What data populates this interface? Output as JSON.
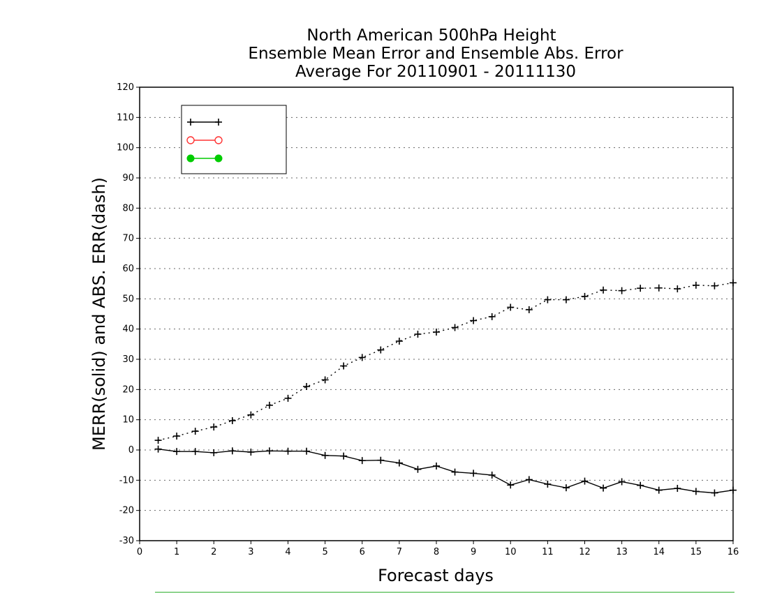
{
  "chart_data": {
    "type": "line",
    "title": [
      "North American 500hPa Height",
      "Ensemble Mean Error and Ensemble Abs. Error",
      "Average For 20110901 - 20111130"
    ],
    "xlabel": "Forecast days",
    "ylabel": "MERR(solid) and ABS. ERR(dash)",
    "xlim": [
      0,
      16
    ],
    "ylim": [
      -30,
      120
    ],
    "xticks": [
      0,
      1,
      2,
      3,
      4,
      5,
      6,
      7,
      8,
      9,
      10,
      11,
      12,
      13,
      14,
      15,
      16
    ],
    "yticks": [
      -30,
      -20,
      -10,
      0,
      10,
      20,
      30,
      40,
      50,
      60,
      70,
      80,
      90,
      100,
      110,
      120
    ],
    "grid": "horizontal dotted",
    "legend_position": "top-left",
    "legend": [
      {
        "label": "",
        "color": "#000000",
        "marker": "plus"
      },
      {
        "label": "",
        "color": "#ff3333",
        "marker": "open-circle"
      },
      {
        "label": "",
        "color": "#00cc00",
        "marker": "filled-circle"
      }
    ],
    "x": [
      0.5,
      1.0,
      1.5,
      2.0,
      2.5,
      3.0,
      3.5,
      4.0,
      4.5,
      5.0,
      5.5,
      6.0,
      6.5,
      7.0,
      7.5,
      8.0,
      8.5,
      9.0,
      9.5,
      10.0,
      10.5,
      11.0,
      11.5,
      12.0,
      12.5,
      13.0,
      13.5,
      14.0,
      14.5,
      15.0,
      15.5,
      16.0
    ],
    "series": [
      {
        "style": "dashed",
        "color": "#000000",
        "values": [
          3.2,
          4.6,
          6.2,
          7.6,
          9.7,
          11.6,
          14.8,
          17.1,
          21.0,
          23.2,
          27.8,
          30.6,
          33.1,
          36.0,
          38.3,
          39.0,
          40.5,
          42.8,
          44.1,
          47.2,
          46.4,
          49.7,
          49.7,
          50.8,
          52.9,
          52.7,
          53.5,
          53.6,
          53.3,
          54.5,
          54.3,
          55.3
        ]
      },
      {
        "style": "solid",
        "color": "#000000",
        "values": [
          0.3,
          -0.5,
          -0.5,
          -0.9,
          -0.3,
          -0.7,
          -0.3,
          -0.4,
          -0.4,
          -1.8,
          -2.0,
          -3.5,
          -3.4,
          -4.3,
          -6.4,
          -5.3,
          -7.3,
          -7.7,
          -8.3,
          -11.6,
          -9.8,
          -11.3,
          -12.5,
          -10.3,
          -12.6,
          -10.5,
          -11.7,
          -13.3,
          -12.7,
          -13.7,
          -14.2,
          -13.3
        ]
      }
    ]
  }
}
